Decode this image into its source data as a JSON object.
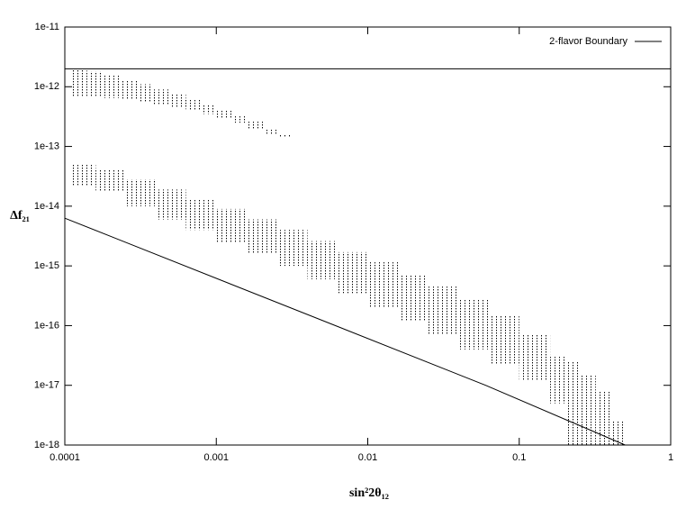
{
  "chart_data": {
    "type": "loglog",
    "xlabel": "sin²2θ₁₂",
    "ylabel": "Δf₂₁",
    "xlim": [
      0.0001,
      1
    ],
    "ylim": [
      1e-18,
      1e-11
    ],
    "xticks": [
      0.0001,
      0.001,
      0.01,
      0.1,
      1
    ],
    "yticks": [
      {
        "value": 1e-18,
        "label": "1e-18"
      },
      {
        "value": 1e-17,
        "label": "1e-17"
      },
      {
        "value": 1e-16,
        "label": "1e-16"
      },
      {
        "value": 1e-15,
        "label": "1e-15"
      },
      {
        "value": 1e-14,
        "label": "1e-14"
      },
      {
        "value": 1e-13,
        "label": "1e-13"
      },
      {
        "value": 1e-12,
        "label": "1e-12"
      },
      {
        "value": 1e-11,
        "label": "1e-11"
      }
    ],
    "log_x": true,
    "log_y": true,
    "legend": "upper right",
    "series": [
      {
        "name": "2-flavor Boundary",
        "kind": "line",
        "color": "#000000",
        "x": [
          0.0001,
          1
        ],
        "values": [
          2e-12,
          2e-12
        ]
      },
      {
        "kind": "line",
        "color": "#000000",
        "x": [
          0.0001,
          0.06,
          0.5
        ],
        "values": [
          6.3e-15,
          1e-17,
          1e-18
        ]
      },
      {
        "kind": "range",
        "color": "#000000",
        "x": [
          0.00011,
          0.00014,
          0.00018,
          0.00023,
          0.0003,
          0.00038,
          0.00049,
          0.00063,
          0.0008,
          0.001,
          0.0013,
          0.0016,
          0.0021,
          0.0026
        ],
        "high": [
          2e-12,
          1.8e-12,
          1.6e-12,
          1.3e-12,
          1.1e-12,
          9e-13,
          7.5e-13,
          6e-13,
          5e-13,
          4e-13,
          3.2e-13,
          2.6e-13,
          2e-13,
          1.6e-13
        ],
        "low": [
          7e-13,
          7e-13,
          6.5e-13,
          6e-13,
          5.5e-13,
          5e-13,
          4.5e-13,
          4e-13,
          3.5e-13,
          3e-13,
          2.5e-13,
          2e-13,
          1.6e-13,
          1.4e-13
        ]
      },
      {
        "kind": "range",
        "color": "#000000",
        "x": [
          0.00011,
          0.00016,
          0.00025,
          0.0004,
          0.00063,
          0.001,
          0.0016,
          0.0025,
          0.004,
          0.0063,
          0.01,
          0.016,
          0.025,
          0.04,
          0.063,
          0.1,
          0.16,
          0.2,
          0.25,
          0.32,
          0.4
        ],
        "high": [
          5e-14,
          4e-14,
          2.8e-14,
          1.9e-14,
          1.3e-14,
          9e-15,
          6e-15,
          4e-15,
          2.6e-15,
          1.7e-15,
          1.15e-15,
          7e-16,
          4.5e-16,
          2.8e-16,
          1.5e-16,
          7e-17,
          3e-17,
          2.5e-17,
          1.5e-17,
          8e-18,
          2.5e-18
        ],
        "low": [
          2.2e-14,
          1.8e-14,
          1e-14,
          6e-15,
          4e-15,
          2.5e-15,
          1.6e-15,
          1e-15,
          6e-16,
          3.5e-16,
          2e-16,
          1.2e-16,
          7e-17,
          4e-17,
          2.2e-17,
          1.2e-17,
          5e-18,
          1e-18,
          1e-18,
          1e-18,
          1e-18
        ]
      }
    ]
  }
}
